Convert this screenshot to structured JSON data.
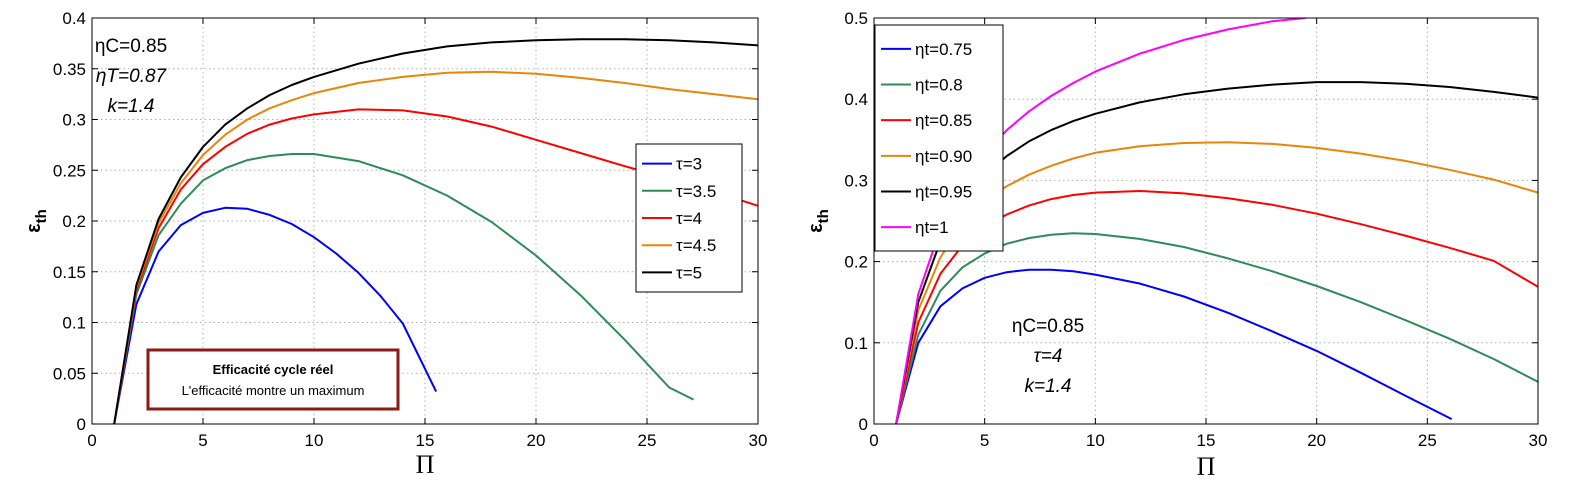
{
  "chart_data": [
    {
      "type": "line",
      "title": "",
      "xlabel": "Π",
      "ylabel": "ε",
      "ylabel_sub": "th",
      "xlim": [
        0,
        30
      ],
      "ylim": [
        0,
        0.4
      ],
      "xticks": [
        0,
        5,
        10,
        15,
        20,
        25,
        30
      ],
      "yticks": [
        0,
        0.05,
        0.1,
        0.15,
        0.2,
        0.25,
        0.3,
        0.35,
        0.4
      ],
      "grid": true,
      "legend_position": "right",
      "annotations": [
        "ηC=0.85",
        "ηT=0.87",
        "k=1.4"
      ],
      "box": {
        "title": "Efficacité cycle réel",
        "text": "L'efficacité montre un maximum",
        "border_color": "#8b1a10"
      },
      "series": [
        {
          "name": "τ=3",
          "color": "#0000ff",
          "x": [
            1,
            2,
            3,
            4,
            5,
            6,
            7,
            8,
            9,
            10,
            11,
            12,
            13,
            14,
            15.5
          ],
          "y": [
            0,
            0.118,
            0.17,
            0.196,
            0.208,
            0.213,
            0.212,
            0.206,
            0.197,
            0.184,
            0.168,
            0.149,
            0.126,
            0.099,
            0.032
          ]
        },
        {
          "name": "τ=3.5",
          "color": "#2e8b57",
          "x": [
            1,
            2,
            3,
            4,
            5,
            6,
            7,
            8,
            9,
            10,
            12,
            14,
            16,
            18,
            20,
            22,
            24,
            26,
            27.1
          ],
          "y": [
            0,
            0.128,
            0.186,
            0.217,
            0.24,
            0.252,
            0.26,
            0.264,
            0.266,
            0.266,
            0.259,
            0.245,
            0.225,
            0.199,
            0.166,
            0.127,
            0.083,
            0.036,
            0.024
          ]
        },
        {
          "name": "τ=4",
          "color": "#ff0000",
          "x": [
            1,
            2,
            3,
            4,
            5,
            6,
            7,
            8,
            9,
            10,
            12,
            14,
            16,
            18,
            20,
            22,
            24,
            26,
            28,
            30
          ],
          "y": [
            0,
            0.132,
            0.193,
            0.231,
            0.256,
            0.273,
            0.286,
            0.295,
            0.301,
            0.305,
            0.31,
            0.309,
            0.303,
            0.293,
            0.28,
            0.267,
            0.254,
            0.242,
            0.229,
            0.215
          ]
        },
        {
          "name": "τ=4.5",
          "color": "#e8850a",
          "x": [
            1,
            2,
            3,
            4,
            5,
            6,
            7,
            8,
            9,
            10,
            12,
            14,
            16,
            18,
            20,
            22,
            24,
            26,
            28,
            30
          ],
          "y": [
            0,
            0.135,
            0.198,
            0.237,
            0.265,
            0.285,
            0.3,
            0.311,
            0.319,
            0.326,
            0.336,
            0.342,
            0.346,
            0.347,
            0.345,
            0.341,
            0.336,
            0.33,
            0.325,
            0.32
          ]
        },
        {
          "name": "τ=5",
          "color": "#000000",
          "x": [
            1,
            2,
            3,
            4,
            5,
            6,
            7,
            8,
            9,
            10,
            12,
            14,
            16,
            18,
            20,
            22,
            24,
            26,
            28,
            30
          ],
          "y": [
            0,
            0.137,
            0.202,
            0.243,
            0.273,
            0.295,
            0.311,
            0.324,
            0.334,
            0.342,
            0.355,
            0.365,
            0.372,
            0.376,
            0.378,
            0.379,
            0.379,
            0.378,
            0.376,
            0.373
          ]
        }
      ]
    },
    {
      "type": "line",
      "title": "",
      "xlabel": "Π",
      "ylabel": "ε",
      "ylabel_sub": "th",
      "xlim": [
        0,
        30
      ],
      "ylim": [
        0,
        0.5
      ],
      "xticks": [
        0,
        5,
        10,
        15,
        20,
        25,
        30
      ],
      "yticks": [
        0,
        0.1,
        0.2,
        0.3,
        0.4,
        0.5
      ],
      "grid": true,
      "legend_position": "top-left",
      "annotations": [
        "ηC=0.85",
        "τ=4",
        "k=1.4"
      ],
      "series": [
        {
          "name": "ηt=0.75",
          "color": "#0000ff",
          "x": [
            1,
            2,
            3,
            4,
            5,
            6,
            7,
            8,
            9,
            10,
            12,
            14,
            16,
            18,
            20,
            22,
            24,
            26.1
          ],
          "y": [
            0,
            0.1,
            0.145,
            0.167,
            0.18,
            0.187,
            0.19,
            0.19,
            0.188,
            0.184,
            0.173,
            0.157,
            0.137,
            0.114,
            0.09,
            0.063,
            0.035,
            0.006
          ]
        },
        {
          "name": "ηt=0.8",
          "color": "#2e8b57",
          "x": [
            1,
            2,
            3,
            4,
            5,
            6,
            7,
            8,
            9,
            10,
            12,
            14,
            16,
            18,
            20,
            22,
            24,
            26,
            28,
            30
          ],
          "y": [
            0,
            0.11,
            0.164,
            0.193,
            0.21,
            0.222,
            0.229,
            0.233,
            0.235,
            0.234,
            0.228,
            0.218,
            0.204,
            0.188,
            0.17,
            0.15,
            0.128,
            0.105,
            0.08,
            0.052
          ]
        },
        {
          "name": "ηt=0.85",
          "color": "#ff0000",
          "x": [
            1,
            2,
            3,
            4,
            5,
            6,
            7,
            8,
            9,
            10,
            12,
            14,
            16,
            18,
            20,
            22,
            24,
            26,
            28,
            30
          ],
          "y": [
            0,
            0.125,
            0.185,
            0.22,
            0.243,
            0.258,
            0.269,
            0.277,
            0.282,
            0.285,
            0.287,
            0.284,
            0.278,
            0.27,
            0.259,
            0.246,
            0.232,
            0.217,
            0.201,
            0.169
          ]
        },
        {
          "name": "ηt=0.90",
          "color": "#e8850a",
          "x": [
            1,
            2,
            3,
            4,
            5,
            6,
            7,
            8,
            9,
            10,
            12,
            14,
            16,
            18,
            20,
            22,
            24,
            26,
            28,
            30
          ],
          "y": [
            0,
            0.14,
            0.205,
            0.247,
            0.274,
            0.293,
            0.307,
            0.318,
            0.327,
            0.334,
            0.342,
            0.346,
            0.347,
            0.345,
            0.34,
            0.333,
            0.324,
            0.313,
            0.301,
            0.285
          ]
        },
        {
          "name": "ηt=0.95",
          "color": "#000000",
          "x": [
            1,
            2,
            3,
            4,
            5,
            6,
            7,
            8,
            9,
            10,
            12,
            14,
            16,
            18,
            20,
            22,
            24,
            26,
            28,
            30
          ],
          "y": [
            0,
            0.15,
            0.225,
            0.273,
            0.306,
            0.33,
            0.348,
            0.362,
            0.373,
            0.382,
            0.396,
            0.406,
            0.413,
            0.418,
            0.421,
            0.421,
            0.419,
            0.415,
            0.409,
            0.402
          ]
        },
        {
          "name": "ηt=1",
          "color": "#ff00ff",
          "x": [
            1,
            2,
            3,
            4,
            5,
            6,
            7,
            8,
            9,
            10,
            12,
            14,
            16,
            18,
            19.5
          ],
          "y": [
            0,
            0.16,
            0.24,
            0.293,
            0.332,
            0.362,
            0.385,
            0.404,
            0.42,
            0.434,
            0.456,
            0.473,
            0.486,
            0.496,
            0.5
          ]
        }
      ]
    }
  ]
}
